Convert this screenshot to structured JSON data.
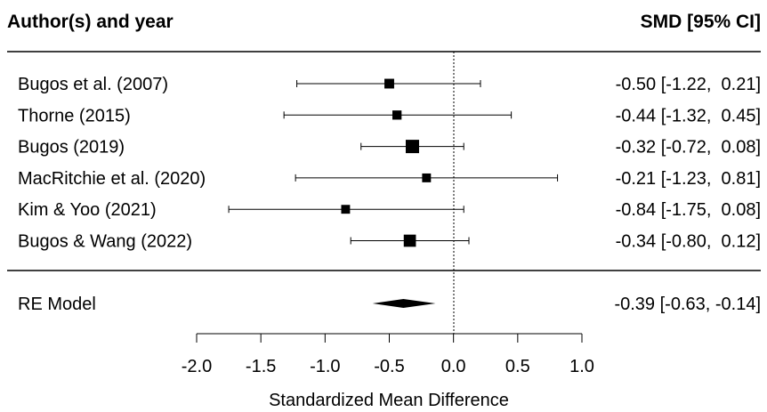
{
  "chart_data": {
    "type": "forest",
    "header_left": "Author(s) and year",
    "header_right": "SMD [95% CI]",
    "xlabel": "Standardized Mean Difference",
    "xlim": [
      -2.0,
      1.0
    ],
    "xticks": [
      "-2.0",
      "-1.5",
      "-1.0",
      "-0.5",
      "0.0",
      "0.5",
      "1.0"
    ],
    "reference_line": 0,
    "studies": [
      {
        "label": "Bugos et al. (2007)",
        "smd": -0.5,
        "lo": -1.22,
        "hi": 0.21,
        "weight": 0.35,
        "text": "-0.50 [-1.22,  0.21]"
      },
      {
        "label": "Thorne (2015)",
        "smd": -0.44,
        "lo": -1.32,
        "hi": 0.45,
        "weight": 0.28,
        "text": "-0.44 [-1.32,  0.45]"
      },
      {
        "label": "Bugos (2019)",
        "smd": -0.32,
        "lo": -0.72,
        "hi": 0.08,
        "weight": 1.0,
        "text": "-0.32 [-0.72,  0.08]"
      },
      {
        "label": "MacRitchie et al. (2020)",
        "smd": -0.21,
        "lo": -1.23,
        "hi": 0.81,
        "weight": 0.24,
        "text": "-0.21 [-1.23,  0.81]"
      },
      {
        "label": "Kim & Yoo (2021)",
        "smd": -0.84,
        "lo": -1.75,
        "hi": 0.08,
        "weight": 0.24,
        "text": "-0.84 [-1.75,  0.08]"
      },
      {
        "label": "Bugos & Wang (2022)",
        "smd": -0.34,
        "lo": -0.8,
        "hi": 0.12,
        "weight": 0.75,
        "text": "-0.34 [-0.80,  0.12]"
      }
    ],
    "summary": {
      "label": "RE Model",
      "smd": -0.39,
      "lo": -0.63,
      "hi": -0.14,
      "text": "-0.39 [-0.63, -0.14]"
    }
  }
}
